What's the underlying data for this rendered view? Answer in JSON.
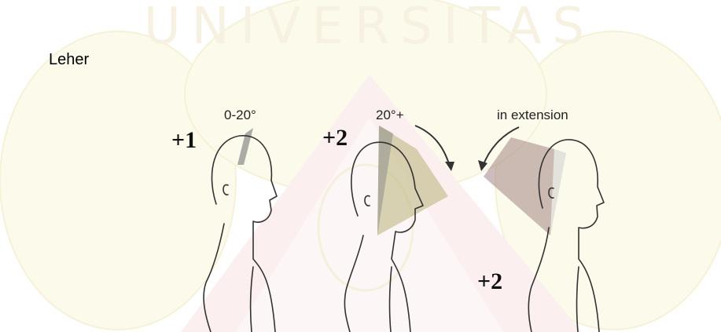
{
  "heading": "Leher",
  "figure": {
    "panels": [
      {
        "score": "+1",
        "angle": "0-20°"
      },
      {
        "score": "+2",
        "angle": "20°+"
      },
      {
        "score": "+2",
        "angle": "in extension"
      }
    ]
  }
}
